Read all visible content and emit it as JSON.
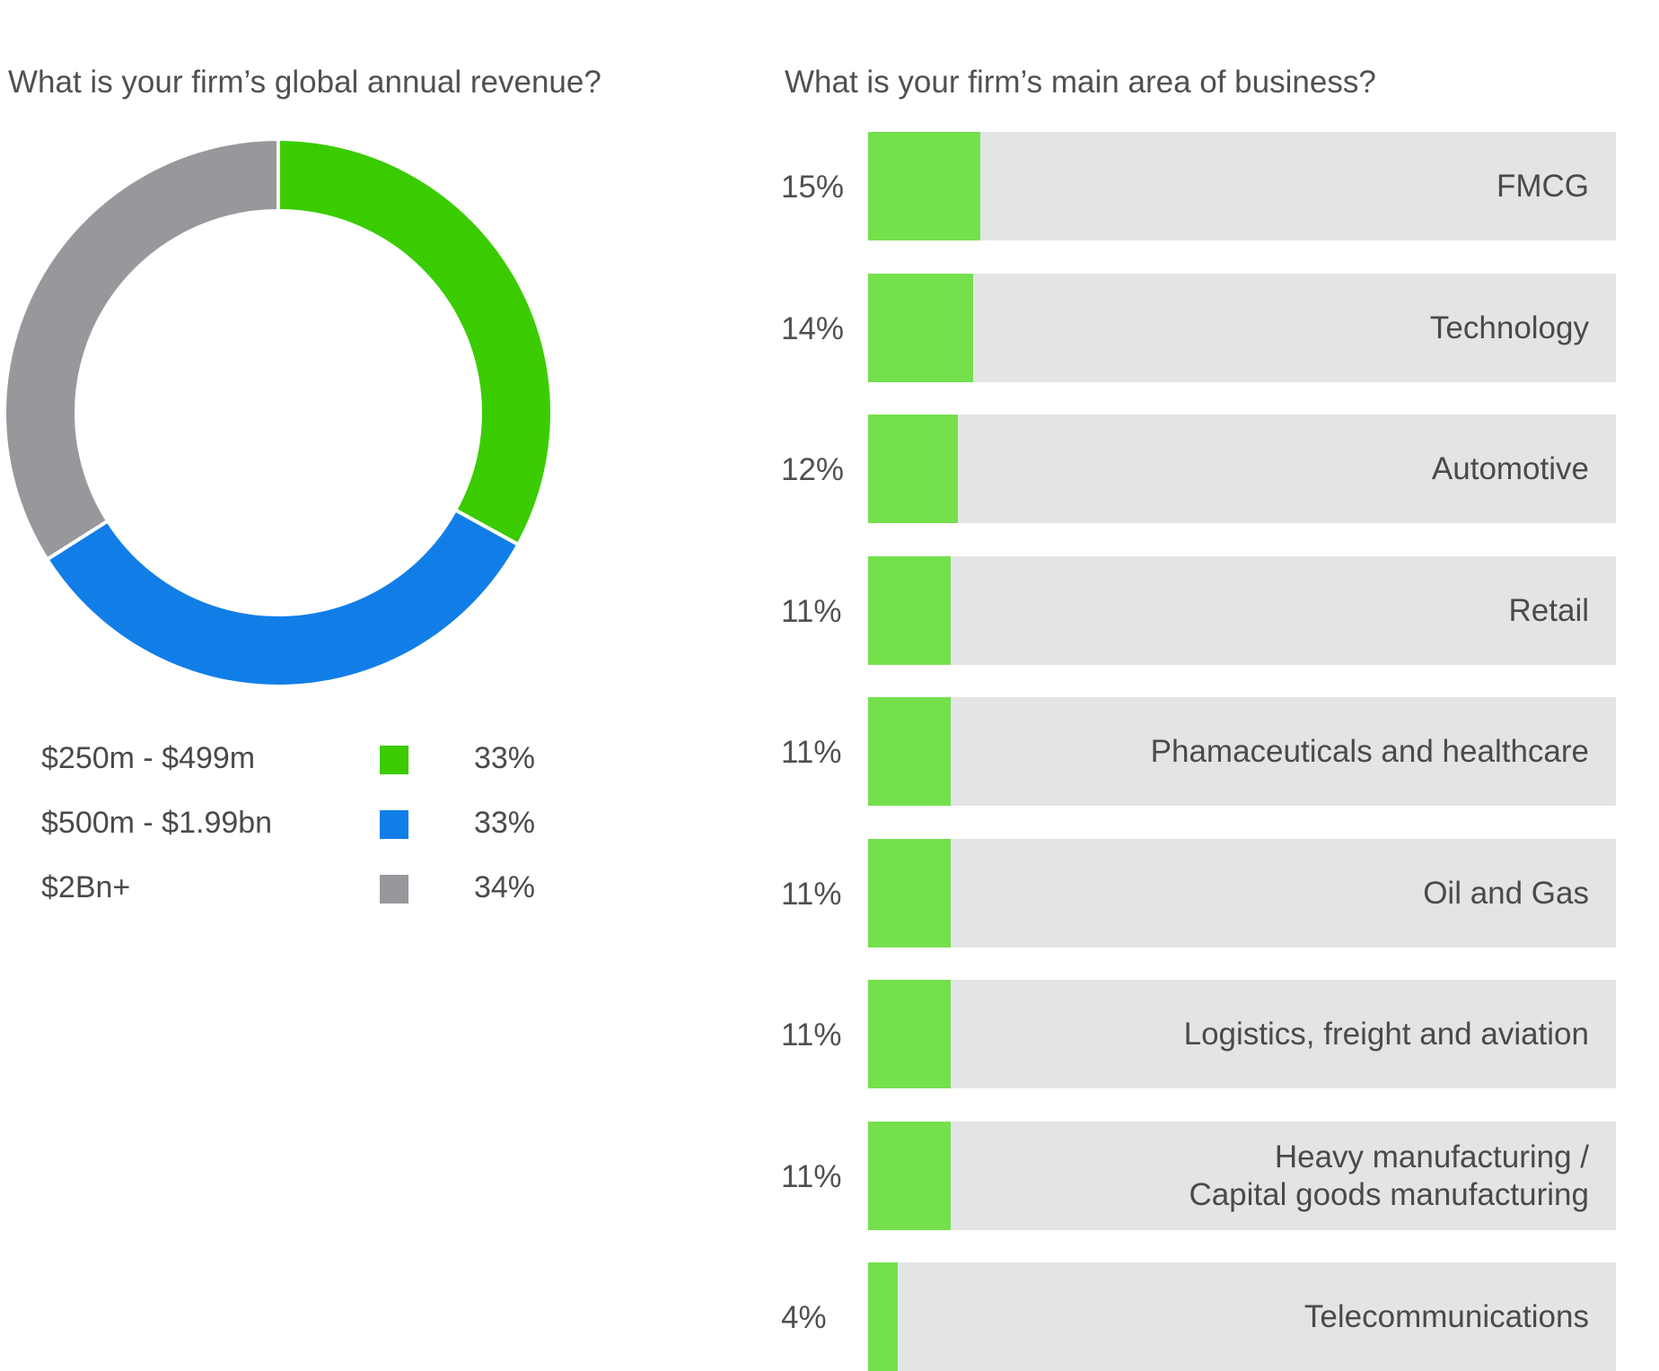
{
  "left_title": "What is your firm’s global annual revenue?",
  "right_title": "What is your firm’s main area of business?",
  "chart_data": [
    {
      "type": "pie",
      "title": "What is your firm’s global annual revenue?",
      "donut": true,
      "categories": [
        "$250m - $499m",
        "$500m - $1.99bn",
        "$2Bn+"
      ],
      "values": [
        33,
        33,
        34
      ],
      "value_labels": [
        "33%",
        "33%",
        "34%"
      ],
      "colors": [
        "#3acc00",
        "#117ee8",
        "#97989c"
      ],
      "legend": "below"
    },
    {
      "type": "bar",
      "orientation": "horizontal",
      "title": "What is your firm’s main area of business?",
      "categories": [
        "FMCG",
        "Technology",
        "Automotive",
        "Retail",
        "Phamaceuticals and healthcare",
        "Oil and Gas",
        "Logistics, freight and aviation",
        "Heavy manufacturing /\nCapital goods manufacturing",
        "Telecommunications"
      ],
      "values": [
        15,
        14,
        12,
        11,
        11,
        11,
        11,
        11,
        4
      ],
      "value_labels": [
        "15%",
        "14%",
        "12%",
        "11%",
        "11%",
        "11%",
        "11%",
        "11%",
        "4%"
      ],
      "xlim": [
        0,
        100
      ],
      "colors": {
        "fill": "#74e04c",
        "track": "#e3e4e6"
      }
    }
  ]
}
